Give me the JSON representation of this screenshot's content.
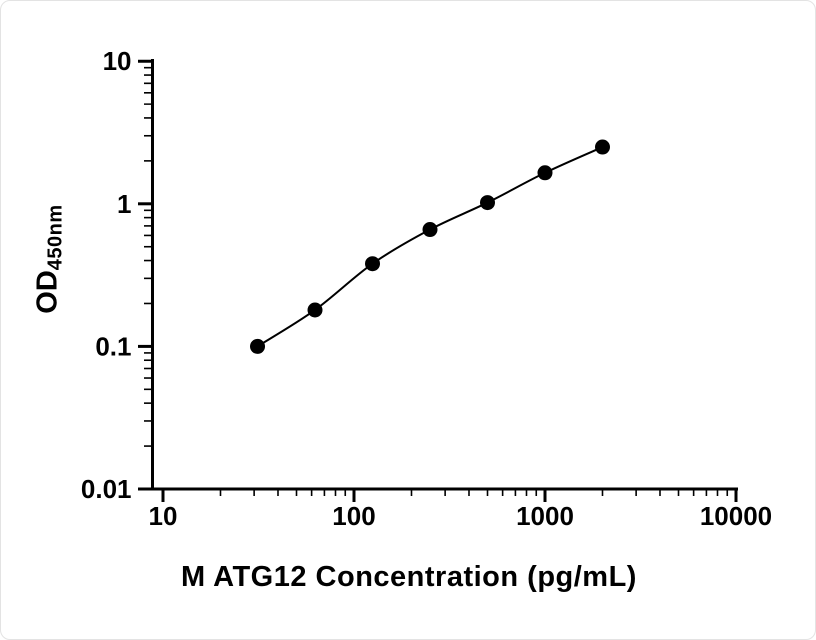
{
  "chart_data": {
    "type": "scatter",
    "title": "",
    "xlabel": "M ATG12 Concentration (pg/mL)",
    "ylabel_main": "OD",
    "ylabel_sub": "450nm",
    "x_scale": "log",
    "y_scale": "log",
    "xlim": [
      10,
      10000
    ],
    "ylim": [
      0.01,
      10
    ],
    "x_ticks": [
      10,
      100,
      1000,
      10000
    ],
    "x_tick_labels": [
      "10",
      "100",
      "1000",
      "10000"
    ],
    "y_ticks": [
      0.01,
      0.1,
      1,
      10
    ],
    "y_tick_labels": [
      "0.01",
      "0.1",
      "1",
      "10"
    ],
    "grid": false,
    "legend": "none",
    "marker_color": "#000000",
    "line_color": "#000000",
    "x": [
      31.25,
      62.5,
      125,
      250,
      500,
      1000,
      2000
    ],
    "y": [
      0.1,
      0.18,
      0.38,
      0.66,
      1.02,
      1.65,
      2.5
    ]
  }
}
